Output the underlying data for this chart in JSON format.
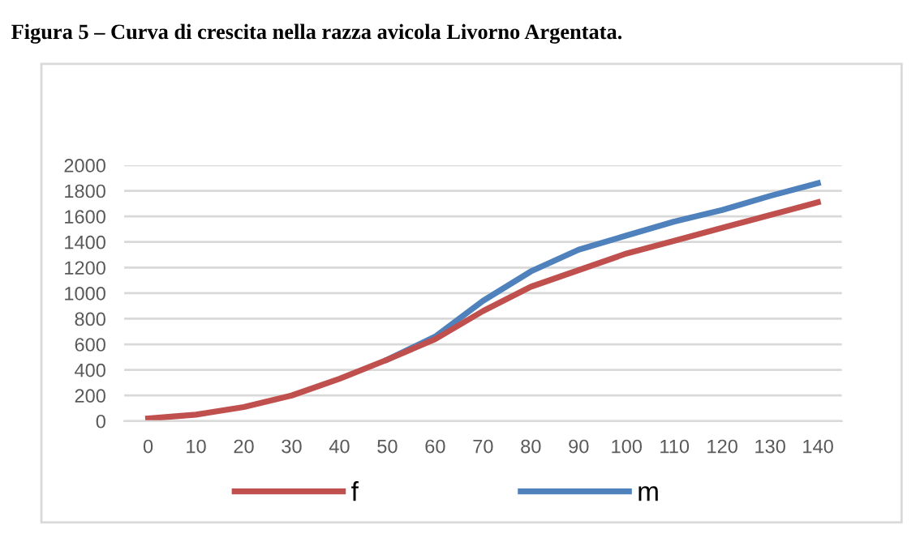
{
  "chart_data": {
    "type": "line",
    "title": "Figura 5 – Curva di crescita nella razza avicola Livorno Argentata.",
    "categories": [
      "0",
      "10",
      "20",
      "30",
      "40",
      "50",
      "60",
      "70",
      "80",
      "90",
      "100",
      "110",
      "120",
      "130",
      "140"
    ],
    "series": [
      {
        "name": "m",
        "color": "#4f81bd",
        "values": [
          null,
          null,
          null,
          null,
          null,
          480,
          660,
          940,
          1170,
          1340,
          1450,
          1560,
          1650,
          1760,
          1860
        ]
      },
      {
        "name": "f",
        "color": "#c0504d",
        "values": [
          20,
          50,
          110,
          200,
          330,
          480,
          640,
          860,
          1050,
          1180,
          1310,
          1410,
          1510,
          1610,
          1710
        ]
      }
    ],
    "ylim": [
      0,
      2000
    ],
    "yticks": [
      0,
      200,
      400,
      600,
      800,
      1000,
      1200,
      1400,
      1600,
      1800,
      2000
    ],
    "grid": "y",
    "legend": "bottom",
    "marker": "none",
    "line_style": "solid"
  }
}
